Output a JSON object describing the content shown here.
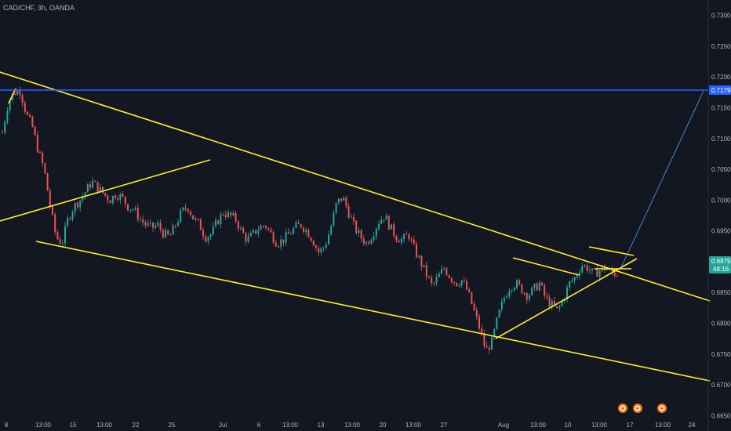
{
  "header": {
    "symbol_line": "CAD/CHF, 3h, OANDA"
  },
  "chart_data": {
    "type": "candlestick",
    "symbol": "CAD/CHF",
    "timeframe": "3h",
    "source": "OANDA",
    "ylim": [
      0.6625,
      0.7325
    ],
    "y_ticks": [
      "0.73000",
      "0.72500",
      "0.72000",
      "0.71500",
      "0.71000",
      "0.70500",
      "0.70000",
      "0.69500",
      "0.69000",
      "0.68500",
      "0.68000",
      "0.67500",
      "0.67000",
      "0.66500"
    ],
    "x_ticks": [
      "8",
      "13:00",
      "15",
      "13:00",
      "22",
      "25",
      "Jul",
      "6",
      "13:00",
      "13",
      "13:00",
      "20",
      "13:00",
      "27",
      "Aug",
      "13:00",
      "10",
      "13:00",
      "17",
      "13:00",
      "24"
    ],
    "close_series": [
      0.711,
      0.716,
      0.7175,
      0.7178,
      0.714,
      0.712,
      0.708,
      0.705,
      0.699,
      0.694,
      0.693,
      0.697,
      0.699,
      0.7,
      0.7015,
      0.703,
      0.702,
      0.701,
      0.7,
      0.701,
      0.7005,
      0.699,
      0.6985,
      0.697,
      0.696,
      0.6955,
      0.696,
      0.6945,
      0.694,
      0.696,
      0.698,
      0.699,
      0.697,
      0.696,
      0.694,
      0.6945,
      0.6965,
      0.698,
      0.6975,
      0.697,
      0.695,
      0.6935,
      0.6945,
      0.6955,
      0.696,
      0.6945,
      0.693,
      0.6935,
      0.6945,
      0.6955,
      0.696,
      0.695,
      0.6935,
      0.6915,
      0.6925,
      0.6955,
      0.6995,
      0.7005,
      0.698,
      0.6955,
      0.694,
      0.693,
      0.6945,
      0.6965,
      0.6975,
      0.6955,
      0.694,
      0.6935,
      0.6945,
      0.692,
      0.69,
      0.688,
      0.686,
      0.6875,
      0.689,
      0.6875,
      0.6865,
      0.687,
      0.685,
      0.682,
      0.679,
      0.6755,
      0.677,
      0.681,
      0.684,
      0.686,
      0.6865,
      0.6855,
      0.6845,
      0.6855,
      0.6865,
      0.684,
      0.683,
      0.682,
      0.684,
      0.6865,
      0.6875,
      0.6895,
      0.689,
      0.688,
      0.6885,
      0.689,
      0.6882,
      0.68798
    ],
    "price_lines": [
      {
        "label": "0.71790",
        "value": 0.7179,
        "color": "#2962ff"
      }
    ],
    "last_price": {
      "label": "0.68798",
      "value": 0.68798,
      "countdown": "48:16",
      "color": "#26a69a"
    },
    "trendlines": [
      {
        "x": [
          "6 Jun",
          "24 Aug"
        ],
        "y": [
          0.7215,
          0.6819
        ],
        "color": "#ffeb3b"
      },
      {
        "x": [
          "9 Jun",
          "24 Aug"
        ],
        "y": [
          0.6918,
          0.6677
        ],
        "color": "#ffeb3b"
      },
      {
        "x": [
          "6 Jun",
          "24 Jun"
        ],
        "y": [
          0.6958,
          0.7064
        ],
        "color": "#ffeb3b"
      },
      {
        "x": [
          "30 Jul",
          "15 Aug"
        ],
        "y": [
          0.6748,
          0.6885
        ],
        "color": "#ffeb3b"
      }
    ],
    "up_color": "#26a69a",
    "down_color": "#ef5350",
    "grid": false
  }
}
